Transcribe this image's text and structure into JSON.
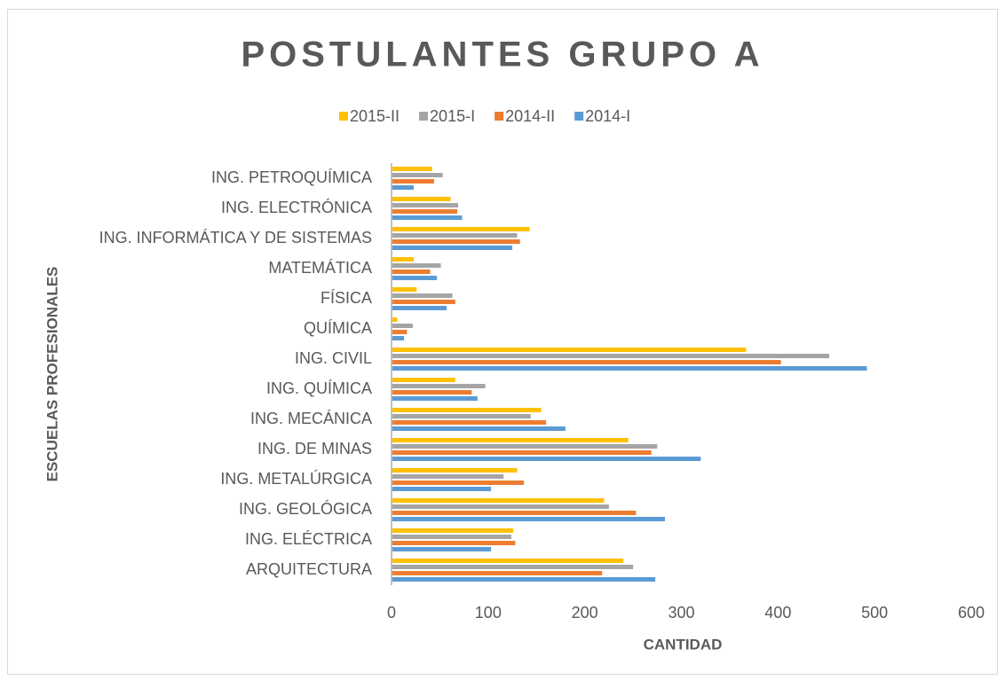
{
  "chart_data": {
    "type": "bar",
    "orientation": "horizontal",
    "title": "POSTULANTES GRUPO A",
    "x_label": "CANTIDAD",
    "y_label": "ESCUELAS PROFESIONALES",
    "categories": [
      "ARQUITECTURA",
      "ING. ELÉCTRICA",
      "ING. GEOLÓGICA",
      "ING. METALÚRGICA",
      "ING. DE MINAS",
      "ING. MECÁNICA",
      "ING. QUÍMICA",
      "ING. CIVIL",
      "QUÍMICA",
      "FÍSICA",
      "MATEMÁTICA",
      "ING. INFORMÁTICA Y DE SISTEMAS",
      "ING. ELECTRÓNICA",
      "ING. PETROQUÍMICA"
    ],
    "series": [
      {
        "name": "2015-II",
        "color": "#ffc000",
        "values": [
          240,
          126,
          220,
          130,
          245,
          155,
          66,
          367,
          6,
          26,
          23,
          143,
          61,
          42
        ]
      },
      {
        "name": "2015-I",
        "color": "#a5a5a5",
        "values": [
          250,
          124,
          225,
          116,
          275,
          144,
          97,
          453,
          22,
          63,
          51,
          130,
          69,
          53
        ]
      },
      {
        "name": "2014-II",
        "color": "#ed7d31",
        "values": [
          218,
          128,
          253,
          137,
          269,
          160,
          83,
          403,
          16,
          66,
          40,
          133,
          68,
          44
        ]
      },
      {
        "name": "2014-I",
        "color": "#5b9bd5",
        "values": [
          273,
          103,
          283,
          103,
          320,
          180,
          89,
          492,
          13,
          57,
          47,
          125,
          73,
          23
        ]
      }
    ],
    "xlim": [
      0,
      600
    ],
    "xticks": [
      0,
      100,
      200,
      300,
      400,
      500,
      600
    ],
    "legend": "top"
  }
}
